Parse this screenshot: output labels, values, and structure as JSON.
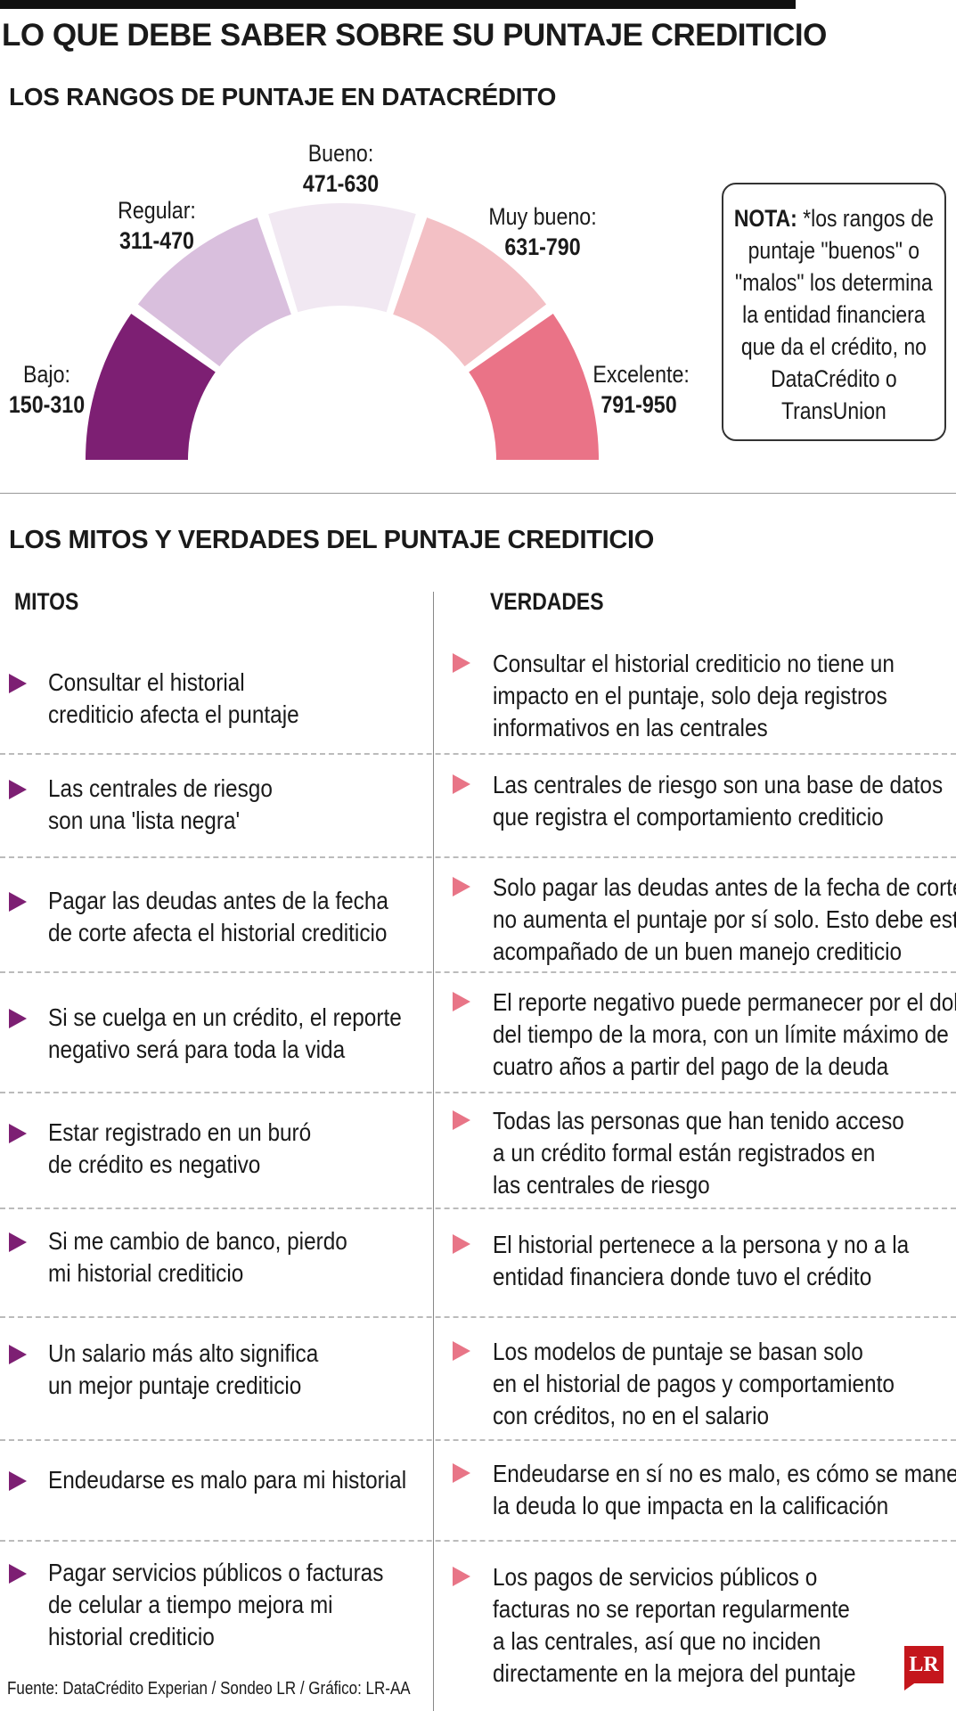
{
  "title": "LO QUE DEBE SABER SOBRE SU PUNTAJE CREDITICIO",
  "ranges_title": "LOS RANGOS DE PUNTAJE EN DATACRÉDITO",
  "ranges": [
    {
      "label": "Bajo:",
      "value": "150-310",
      "color": "#7d1f73"
    },
    {
      "label": "Regular:",
      "value": "311-470",
      "color": "#d9bfdd"
    },
    {
      "label": "Bueno:",
      "value": "471-630",
      "color": "#f1e8f2"
    },
    {
      "label": "Muy bueno:",
      "value": "631-790",
      "color": "#f3c0c5"
    },
    {
      "label": "Excelente:",
      "value": "791-950",
      "color": "#ea7387"
    }
  ],
  "nota": {
    "bold": "NOTA:",
    "text": " *los rangos de puntaje \"buenos\" o \"malos\" los determina la entidad financiera que da el crédito, no DataCrédito o TransUnion"
  },
  "myths_title": "LOS MITOS Y VERDADES DEL PUNTAJE CREDITICIO",
  "col_myths": "MITOS",
  "col_truths": "VERDADES",
  "rows": [
    {
      "myth": [
        "Consultar el historial",
        "crediticio afecta el puntaje"
      ],
      "truth": [
        "Consultar el historial crediticio no tiene un",
        "impacto en el puntaje, solo deja registros",
        "informativos en las centrales"
      ]
    },
    {
      "myth": [
        "Las centrales de riesgo",
        "son una 'lista negra'"
      ],
      "truth": [
        "Las centrales de riesgo son una base de datos",
        "que registra el comportamiento crediticio"
      ]
    },
    {
      "myth": [
        "Pagar las deudas antes de la fecha",
        "de corte afecta el historial crediticio"
      ],
      "truth": [
        "Solo pagar las deudas antes de la fecha de corte",
        "no aumenta el puntaje por sí solo. Esto debe estar",
        "acompañado de un buen manejo crediticio"
      ]
    },
    {
      "myth": [
        "Si se cuelga en un crédito, el reporte",
        "negativo será para toda la vida"
      ],
      "truth": [
        "El reporte negativo puede permanecer por el doble",
        "del tiempo de la mora, con un límite máximo de",
        "cuatro años a partir del pago de la deuda"
      ]
    },
    {
      "myth": [
        "Estar registrado en un buró",
        "de crédito es negativo"
      ],
      "truth": [
        "Todas las personas que han tenido acceso",
        "a un crédito formal están registrados en",
        "las centrales de riesgo"
      ]
    },
    {
      "myth": [
        "Si me cambio de banco, pierdo",
        "mi historial crediticio"
      ],
      "truth": [
        "El historial pertenece a la persona y no a la",
        "entidad financiera donde tuvo el crédito"
      ]
    },
    {
      "myth": [
        "Un salario más alto significa",
        "un mejor puntaje crediticio"
      ],
      "truth": [
        "Los modelos de puntaje se basan solo",
        "en el historial de pagos y comportamiento",
        "con créditos, no en el salario"
      ]
    },
    {
      "myth": [
        "Endeudarse es malo para mi historial"
      ],
      "truth": [
        "Endeudarse en sí no es malo, es cómo se maneja",
        "la deuda lo que impacta en la calificación"
      ]
    },
    {
      "myth": [
        "Pagar servicios públicos o facturas",
        "de celular a tiempo mejora mi",
        "historial crediticio"
      ],
      "truth": [
        "Los pagos de servicios públicos o",
        "facturas no se reportan regularmente",
        "a las centrales, así que no inciden",
        "directamente en la mejora del puntaje"
      ]
    }
  ],
  "source": "Fuente: DataCrédito Experian / Sondeo LR / Gráfico: LR-AA",
  "logo": "LR"
}
